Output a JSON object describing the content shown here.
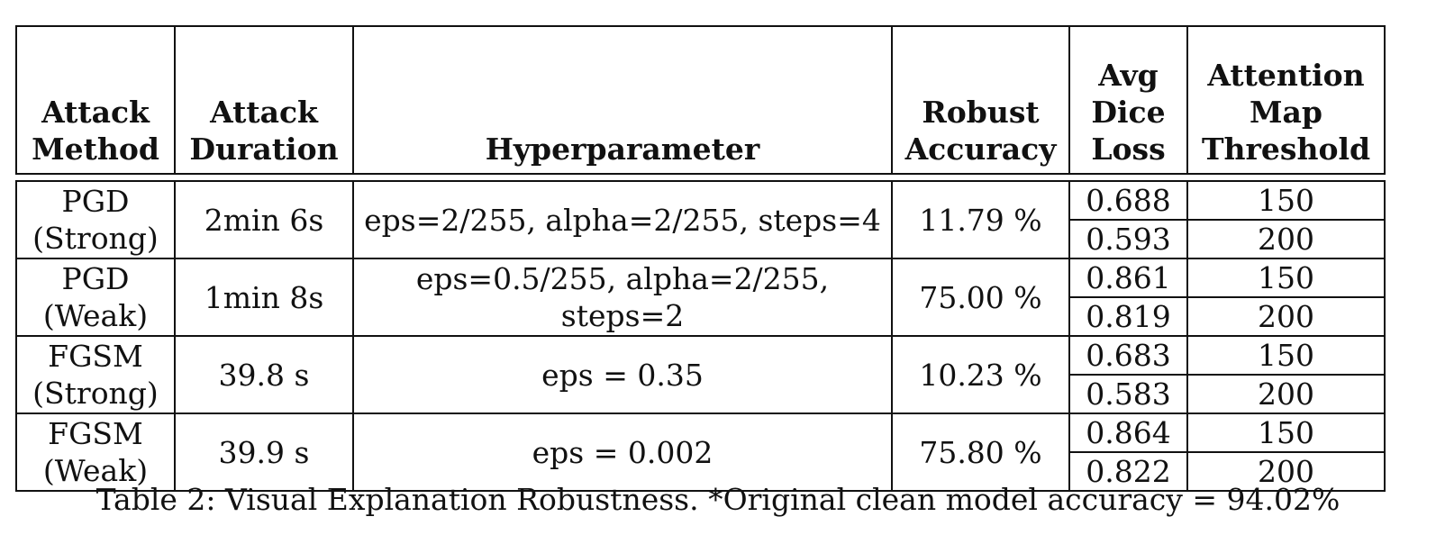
{
  "table": {
    "headers": {
      "method": [
        "Attack",
        "Method"
      ],
      "duration": [
        "Attack",
        "Duration"
      ],
      "hyper": [
        "Hyperparameter"
      ],
      "robust": [
        "Robust",
        "Accuracy"
      ],
      "dice": [
        "Avg",
        "Dice",
        "Loss"
      ],
      "threshold": [
        "Attention",
        "Map",
        "Threshold"
      ]
    },
    "rows": [
      {
        "method": [
          "PGD",
          "(Strong)"
        ],
        "duration": "2min 6s",
        "hyper": "eps=2/255, alpha=2/255, steps=4",
        "robust": "11.79 %",
        "sub": [
          {
            "dice": "0.688",
            "threshold": "150"
          },
          {
            "dice": "0.593",
            "threshold": "200"
          }
        ]
      },
      {
        "method": [
          "PGD",
          "(Weak)"
        ],
        "duration": "1min 8s",
        "hyper": "eps=0.5/255, alpha=2/255, steps=2",
        "robust": "75.00 %",
        "sub": [
          {
            "dice": "0.861",
            "threshold": "150"
          },
          {
            "dice": "0.819",
            "threshold": "200"
          }
        ]
      },
      {
        "method": [
          "FGSM",
          "(Strong)"
        ],
        "duration": "39.8 s",
        "hyper": "eps = 0.35",
        "robust": "10.23 %",
        "sub": [
          {
            "dice": "0.683",
            "threshold": "150"
          },
          {
            "dice": "0.583",
            "threshold": "200"
          }
        ]
      },
      {
        "method": [
          "FGSM",
          "(Weak)"
        ],
        "duration": "39.9 s",
        "hyper": "eps = 0.002",
        "robust": "75.80 %",
        "sub": [
          {
            "dice": "0.864",
            "threshold": "150"
          },
          {
            "dice": "0.822",
            "threshold": "200"
          }
        ]
      }
    ]
  },
  "caption": "Table 2: Visual Explanation Robustness. *Original clean model accuracy = 94.02%"
}
